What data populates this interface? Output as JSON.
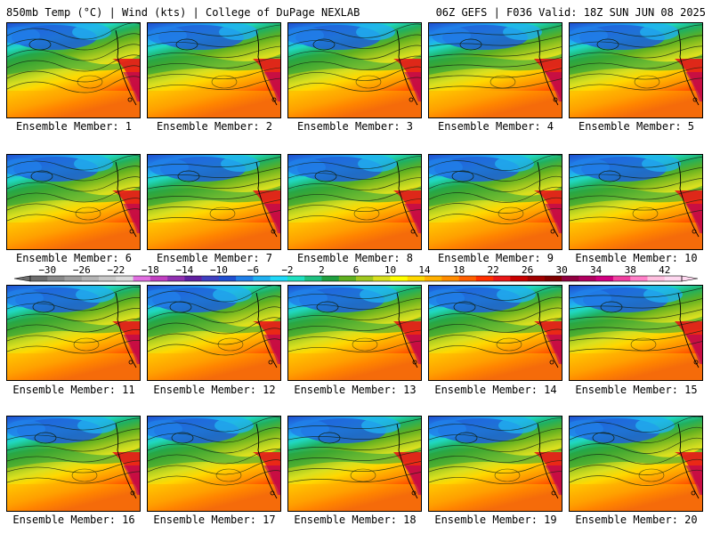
{
  "header": {
    "left": "850mb Temp (°C) | Wind (kts) | College of DuPage NEXLAB",
    "right": "06Z GEFS | F036 Valid: 18Z SUN JUN 08 2025"
  },
  "members": [
    {
      "label": "Ensemble Member: 1"
    },
    {
      "label": "Ensemble Member: 2"
    },
    {
      "label": "Ensemble Member: 3"
    },
    {
      "label": "Ensemble Member: 4"
    },
    {
      "label": "Ensemble Member: 5"
    },
    {
      "label": "Ensemble Member: 6"
    },
    {
      "label": "Ensemble Member: 7"
    },
    {
      "label": "Ensemble Member: 8"
    },
    {
      "label": "Ensemble Member: 9"
    },
    {
      "label": "Ensemble Member: 10"
    },
    {
      "label": "Ensemble Member: 11"
    },
    {
      "label": "Ensemble Member: 12"
    },
    {
      "label": "Ensemble Member: 13"
    },
    {
      "label": "Ensemble Member: 14"
    },
    {
      "label": "Ensemble Member: 15"
    },
    {
      "label": "Ensemble Member: 16"
    },
    {
      "label": "Ensemble Member: 17"
    },
    {
      "label": "Ensemble Member: 18"
    },
    {
      "label": "Ensemble Member: 19"
    },
    {
      "label": "Ensemble Member: 20"
    }
  ],
  "colorbar": {
    "tick_labels": [
      "−30",
      "−26",
      "−22",
      "−18",
      "−14",
      "−10",
      "−6",
      "−2",
      "2",
      "6",
      "10",
      "14",
      "18",
      "22",
      "26",
      "30",
      "34",
      "38",
      "42"
    ],
    "colors": [
      "#6e6e6e",
      "#8a8a8a",
      "#a0a0a0",
      "#b4b4b4",
      "#c8c8c8",
      "#dcdcdc",
      "#e070e0",
      "#c040c0",
      "#9030b0",
      "#6020a0",
      "#4040c0",
      "#2050d0",
      "#2080e8",
      "#20b0f0",
      "#20d8f8",
      "#20e0c0",
      "#20c080",
      "#20a040",
      "#60b020",
      "#a0c820",
      "#d8e020",
      "#ffff00",
      "#ffd800",
      "#ffb000",
      "#ff8c00",
      "#ff6000",
      "#ff3000",
      "#e81818",
      "#c80000",
      "#a00000",
      "#800000",
      "#900040",
      "#b00060",
      "#d00080",
      "#f040a0",
      "#ff80c8",
      "#ffc0e0",
      "#ffd8f0"
    ]
  }
}
